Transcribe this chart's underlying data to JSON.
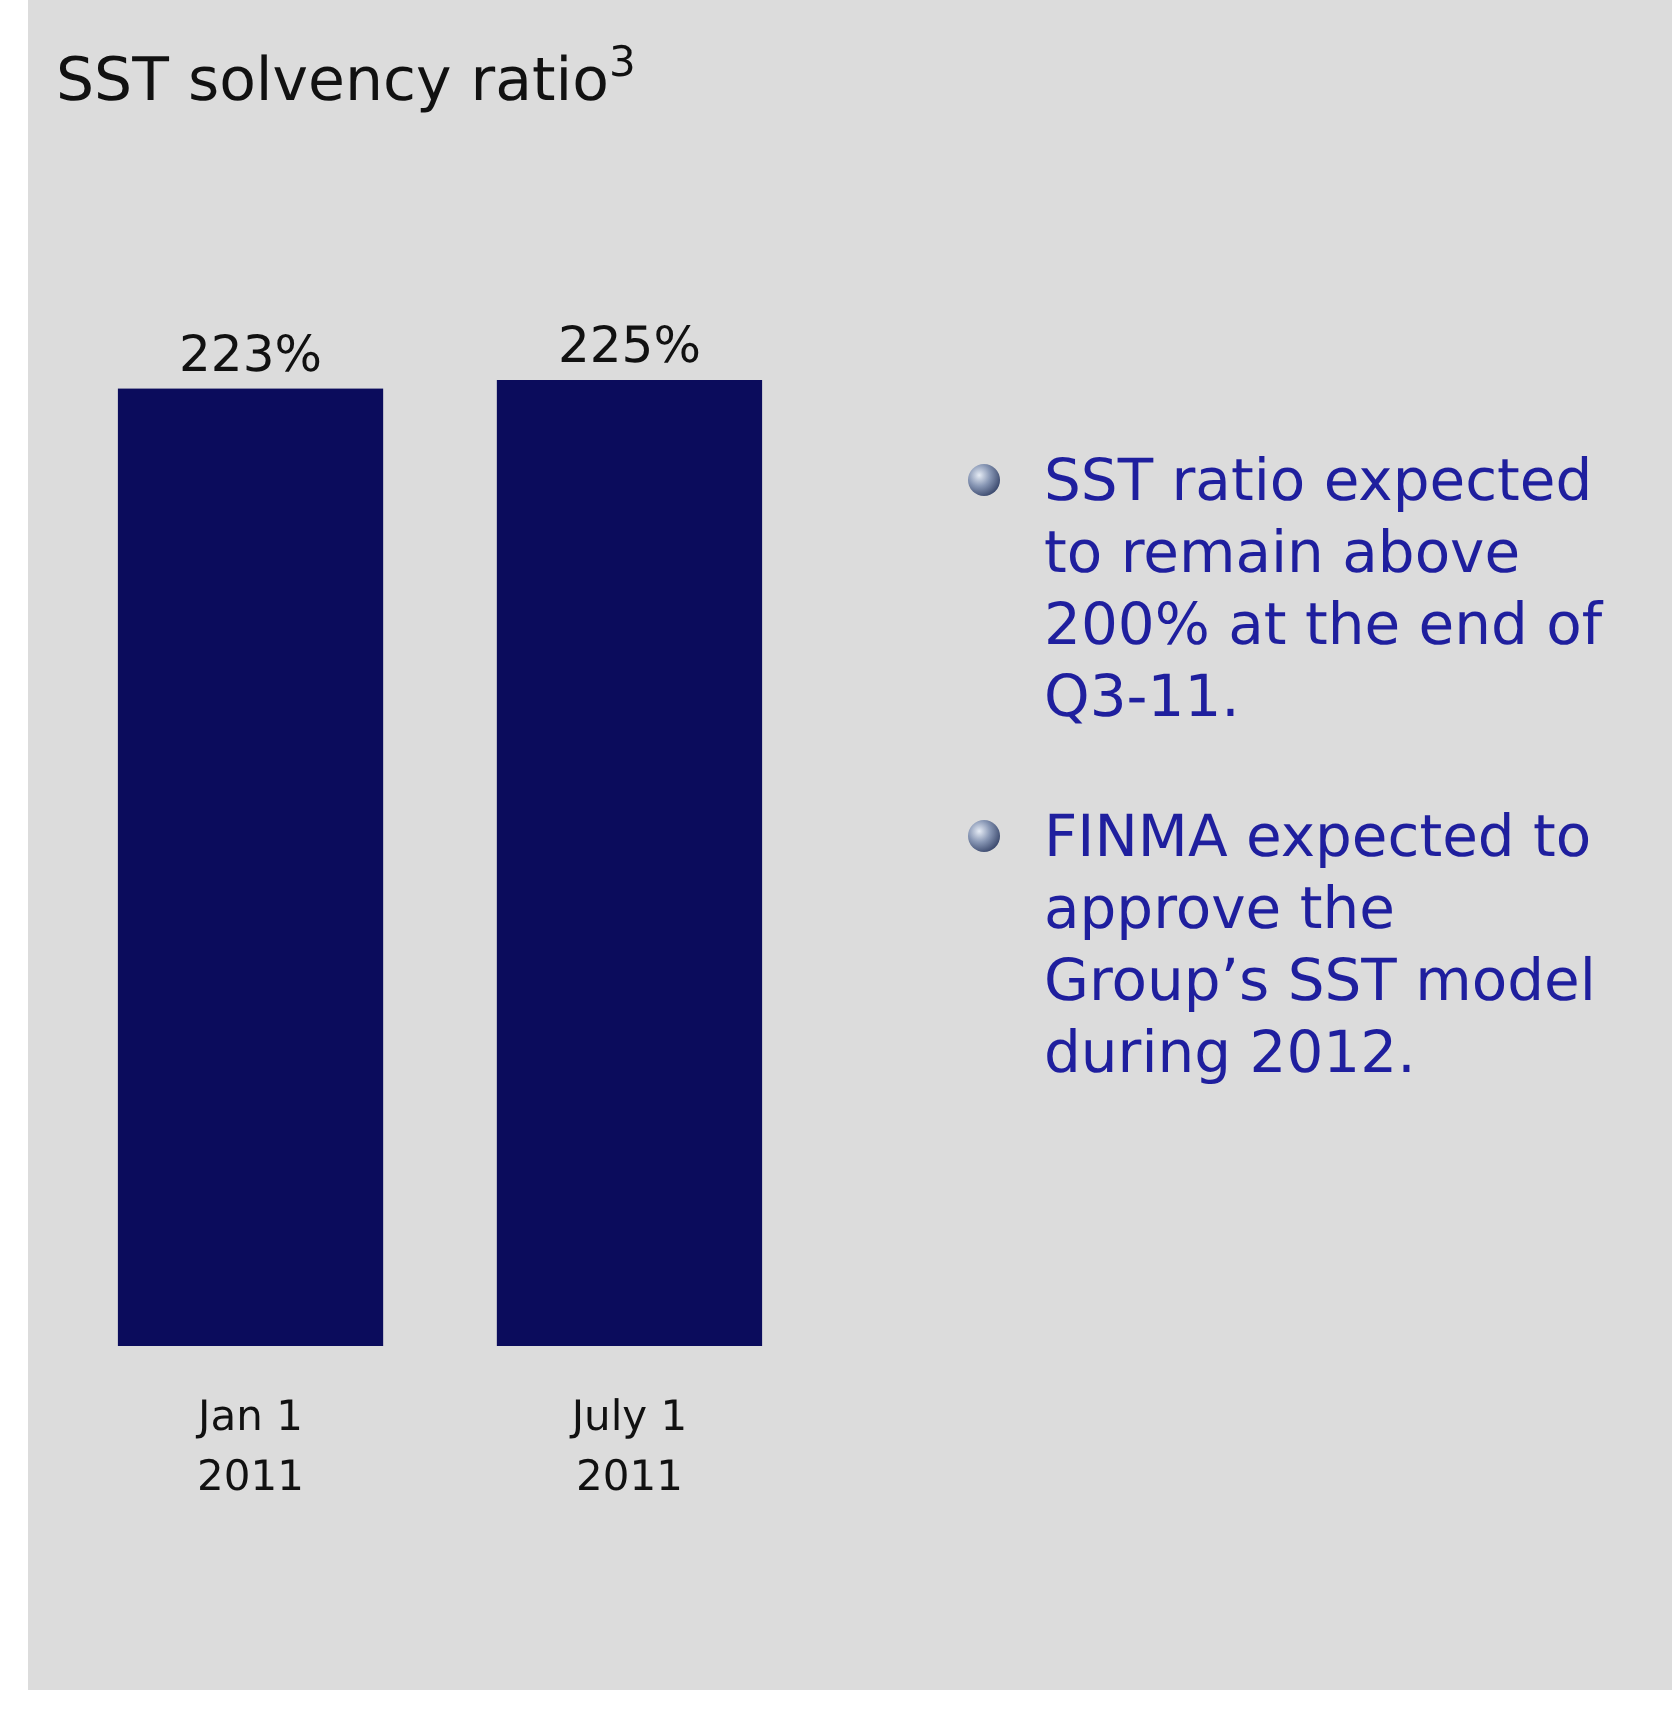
{
  "chart_data": {
    "type": "bar",
    "title": "SST solvency ratio$^{3}$",
    "categories": [
      "Jan 1\n2011",
      "July 1\n2011"
    ],
    "values": [
      223,
      225
    ],
    "value_labels": [
      "223%",
      "225%"
    ],
    "color": "#0b0c5c",
    "annotations": [
      "SST ratio expected to remain above 200% at the end of Q3-11.",
      "FINMA expected to approve the Group’s SST model during 2012."
    ]
  }
}
